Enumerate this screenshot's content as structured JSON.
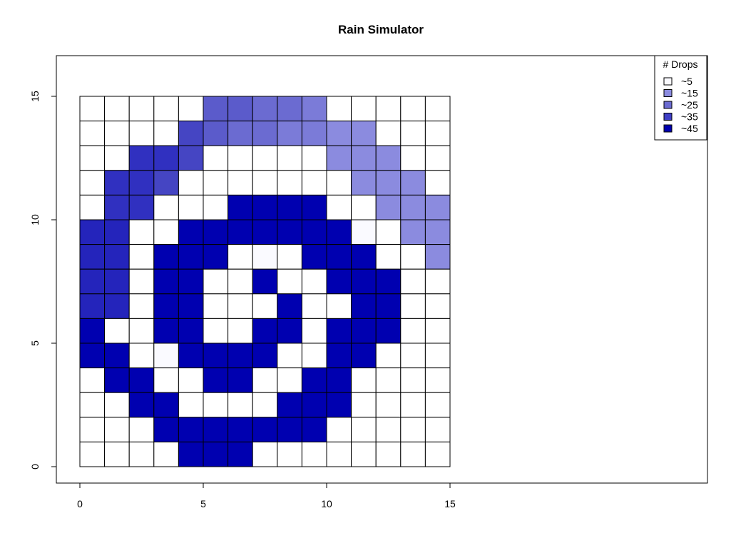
{
  "chart_data": {
    "type": "heatmap",
    "title": "Rain Simulator",
    "xlabel": "",
    "ylabel": "",
    "xlim": [
      0,
      15
    ],
    "ylim": [
      0,
      15
    ],
    "x_ticks": [
      "0",
      "5",
      "10",
      "15"
    ],
    "y_ticks": [
      "0",
      "5",
      "10",
      "15"
    ],
    "grid": "cell borders",
    "legend": {
      "title": "# Drops",
      "placement": "top-right",
      "entries": [
        {
          "label": "~5",
          "color": "#fafaff"
        },
        {
          "label": "~15",
          "color": "#8b8bdf"
        },
        {
          "label": "~25",
          "color": "#6b6bd1"
        },
        {
          "label": "~35",
          "color": "#3f3fc6"
        },
        {
          "label": "~45",
          "color": "#0000b0"
        }
      ]
    },
    "colors": [
      "#ffffff",
      "#fafaff",
      "#8b8bdf",
      "#7b7bd8",
      "#6b6bd1",
      "#5b5bcb",
      "#4545c3",
      "#3030c0",
      "#2424bb",
      "#0000b0"
    ],
    "rows_top_to_bottom": [
      [
        0,
        0,
        0,
        0,
        0,
        5,
        5,
        4,
        4,
        3,
        0,
        0,
        0,
        0,
        0
      ],
      [
        0,
        0,
        0,
        0,
        6,
        5,
        4,
        4,
        3,
        3,
        2,
        2,
        0,
        0,
        0
      ],
      [
        0,
        0,
        7,
        7,
        6,
        0,
        0,
        0,
        0,
        0,
        2,
        2,
        2,
        0,
        0
      ],
      [
        0,
        7,
        7,
        6,
        0,
        0,
        0,
        0,
        0,
        0,
        0,
        2,
        2,
        2,
        0
      ],
      [
        0,
        7,
        7,
        0,
        0,
        0,
        9,
        9,
        9,
        9,
        0,
        0,
        2,
        2,
        2
      ],
      [
        8,
        8,
        0,
        0,
        9,
        9,
        9,
        9,
        9,
        9,
        9,
        1,
        0,
        2,
        2
      ],
      [
        8,
        8,
        0,
        9,
        9,
        9,
        0,
        1,
        0,
        9,
        9,
        9,
        0,
        0,
        2
      ],
      [
        8,
        8,
        0,
        9,
        9,
        0,
        0,
        9,
        0,
        0,
        9,
        9,
        9,
        0,
        0
      ],
      [
        8,
        8,
        0,
        9,
        9,
        0,
        0,
        0,
        9,
        0,
        0,
        9,
        9,
        0,
        0
      ],
      [
        9,
        0,
        0,
        9,
        9,
        0,
        0,
        9,
        9,
        0,
        9,
        9,
        9,
        0,
        0
      ],
      [
        9,
        9,
        0,
        1,
        9,
        9,
        9,
        9,
        0,
        0,
        9,
        9,
        0,
        0,
        0
      ],
      [
        0,
        9,
        9,
        0,
        0,
        9,
        9,
        0,
        0,
        9,
        9,
        0,
        0,
        0,
        0
      ],
      [
        0,
        0,
        9,
        9,
        0,
        0,
        0,
        0,
        9,
        9,
        9,
        0,
        0,
        0,
        0
      ],
      [
        0,
        0,
        0,
        9,
        9,
        9,
        9,
        9,
        9,
        9,
        0,
        0,
        0,
        0,
        0
      ],
      [
        0,
        0,
        0,
        0,
        9,
        9,
        9,
        0,
        0,
        0,
        0,
        0,
        0,
        0,
        0
      ]
    ]
  }
}
